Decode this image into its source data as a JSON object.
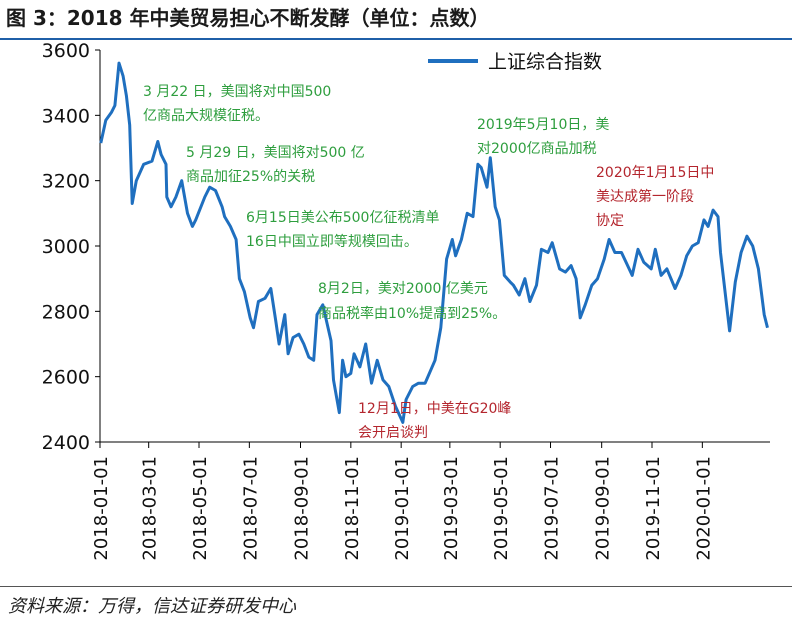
{
  "header": {
    "title": "图 3：2018 年中美贸易担心不断发酵（单位：点数）"
  },
  "footer": {
    "source": "资料来源：万得，信达证券研发中心"
  },
  "chart_data": {
    "type": "line",
    "title": "2018 年中美贸易担心不断发酵",
    "unit": "单位：点数",
    "xlabel": "",
    "ylabel": "",
    "ylim": [
      2400,
      3600
    ],
    "yticks": [
      2400,
      2600,
      2800,
      3000,
      3200,
      3400,
      3600
    ],
    "xlim": [
      "2018-01-01",
      "2020-03-23"
    ],
    "xticks": [
      "2018-01-01",
      "2018-03-01",
      "2018-05-01",
      "2018-07-01",
      "2018-09-01",
      "2018-11-01",
      "2019-01-01",
      "2019-03-01",
      "2019-05-01",
      "2019-07-01",
      "2019-09-01",
      "2019-11-01",
      "2020-01-01"
    ],
    "grid": false,
    "legend": {
      "position": "top-right",
      "entries": [
        "上证综合指数"
      ]
    },
    "series": [
      {
        "name": "上证综合指数",
        "color": "#1f6fbf",
        "points": [
          [
            "2018-01-02",
            3315
          ],
          [
            "2018-01-08",
            3385
          ],
          [
            "2018-01-15",
            3410
          ],
          [
            "2018-01-19",
            3430
          ],
          [
            "2018-01-24",
            3560
          ],
          [
            "2018-01-29",
            3520
          ],
          [
            "2018-02-02",
            3460
          ],
          [
            "2018-02-06",
            3370
          ],
          [
            "2018-02-09",
            3130
          ],
          [
            "2018-02-14",
            3200
          ],
          [
            "2018-02-23",
            3250
          ],
          [
            "2018-03-05",
            3260
          ],
          [
            "2018-03-12",
            3320
          ],
          [
            "2018-03-16",
            3280
          ],
          [
            "2018-03-22",
            3250
          ],
          [
            "2018-03-23",
            3150
          ],
          [
            "2018-03-28",
            3120
          ],
          [
            "2018-04-03",
            3150
          ],
          [
            "2018-04-10",
            3200
          ],
          [
            "2018-04-17",
            3100
          ],
          [
            "2018-04-23",
            3060
          ],
          [
            "2018-04-27",
            3080
          ],
          [
            "2018-05-08",
            3150
          ],
          [
            "2018-05-14",
            3180
          ],
          [
            "2018-05-21",
            3170
          ],
          [
            "2018-05-29",
            3120
          ],
          [
            "2018-06-01",
            3090
          ],
          [
            "2018-06-08",
            3060
          ],
          [
            "2018-06-15",
            3020
          ],
          [
            "2018-06-19",
            2900
          ],
          [
            "2018-06-25",
            2860
          ],
          [
            "2018-07-02",
            2780
          ],
          [
            "2018-07-06",
            2750
          ],
          [
            "2018-07-12",
            2830
          ],
          [
            "2018-07-20",
            2840
          ],
          [
            "2018-07-27",
            2870
          ],
          [
            "2018-08-02",
            2770
          ],
          [
            "2018-08-06",
            2700
          ],
          [
            "2018-08-13",
            2790
          ],
          [
            "2018-08-17",
            2670
          ],
          [
            "2018-08-23",
            2720
          ],
          [
            "2018-08-30",
            2730
          ],
          [
            "2018-09-05",
            2700
          ],
          [
            "2018-09-11",
            2660
          ],
          [
            "2018-09-17",
            2650
          ],
          [
            "2018-09-21",
            2790
          ],
          [
            "2018-09-28",
            2820
          ],
          [
            "2018-10-08",
            2710
          ],
          [
            "2018-10-11",
            2590
          ],
          [
            "2018-10-18",
            2490
          ],
          [
            "2018-10-22",
            2650
          ],
          [
            "2018-10-26",
            2600
          ],
          [
            "2018-11-01",
            2610
          ],
          [
            "2018-11-05",
            2670
          ],
          [
            "2018-11-12",
            2630
          ],
          [
            "2018-11-19",
            2700
          ],
          [
            "2018-11-26",
            2580
          ],
          [
            "2018-12-03",
            2650
          ],
          [
            "2018-12-10",
            2590
          ],
          [
            "2018-12-17",
            2570
          ],
          [
            "2018-12-25",
            2510
          ],
          [
            "2019-01-03",
            2460
          ],
          [
            "2019-01-07",
            2530
          ],
          [
            "2019-01-15",
            2570
          ],
          [
            "2019-01-22",
            2580
          ],
          [
            "2019-01-30",
            2580
          ],
          [
            "2019-02-11",
            2650
          ],
          [
            "2019-02-18",
            2750
          ],
          [
            "2019-02-25",
            2960
          ],
          [
            "2019-03-04",
            3020
          ],
          [
            "2019-03-08",
            2970
          ],
          [
            "2019-03-15",
            3020
          ],
          [
            "2019-03-22",
            3100
          ],
          [
            "2019-03-29",
            3090
          ],
          [
            "2019-04-04",
            3250
          ],
          [
            "2019-04-08",
            3240
          ],
          [
            "2019-04-15",
            3180
          ],
          [
            "2019-04-19",
            3270
          ],
          [
            "2019-04-25",
            3120
          ],
          [
            "2019-04-30",
            3080
          ],
          [
            "2019-05-06",
            2910
          ],
          [
            "2019-05-13",
            2890
          ],
          [
            "2019-05-17",
            2880
          ],
          [
            "2019-05-24",
            2850
          ],
          [
            "2019-05-31",
            2900
          ],
          [
            "2019-06-06",
            2830
          ],
          [
            "2019-06-14",
            2880
          ],
          [
            "2019-06-20",
            2990
          ],
          [
            "2019-06-28",
            2980
          ],
          [
            "2019-07-03",
            3010
          ],
          [
            "2019-07-12",
            2930
          ],
          [
            "2019-07-19",
            2920
          ],
          [
            "2019-07-26",
            2940
          ],
          [
            "2019-08-01",
            2900
          ],
          [
            "2019-08-06",
            2780
          ],
          [
            "2019-08-12",
            2820
          ],
          [
            "2019-08-20",
            2880
          ],
          [
            "2019-08-27",
            2900
          ],
          [
            "2019-09-04",
            2960
          ],
          [
            "2019-09-10",
            3020
          ],
          [
            "2019-09-17",
            2980
          ],
          [
            "2019-09-25",
            2980
          ],
          [
            "2019-10-08",
            2910
          ],
          [
            "2019-10-15",
            2990
          ],
          [
            "2019-10-22",
            2950
          ],
          [
            "2019-10-31",
            2930
          ],
          [
            "2019-11-05",
            2990
          ],
          [
            "2019-11-12",
            2910
          ],
          [
            "2019-11-19",
            2930
          ],
          [
            "2019-11-29",
            2870
          ],
          [
            "2019-12-06",
            2910
          ],
          [
            "2019-12-13",
            2970
          ],
          [
            "2019-12-20",
            3000
          ],
          [
            "2019-12-27",
            3010
          ],
          [
            "2020-01-03",
            3080
          ],
          [
            "2020-01-08",
            3060
          ],
          [
            "2020-01-14",
            3110
          ],
          [
            "2020-01-20",
            3090
          ],
          [
            "2020-01-23",
            2980
          ],
          [
            "2020-02-03",
            2740
          ],
          [
            "2020-02-10",
            2890
          ],
          [
            "2020-02-17",
            2980
          ],
          [
            "2020-02-24",
            3030
          ],
          [
            "2020-03-02",
            3000
          ],
          [
            "2020-03-09",
            2930
          ],
          [
            "2020-03-16",
            2790
          ],
          [
            "2020-03-20",
            2750
          ]
        ]
      }
    ],
    "annotations": [
      {
        "id": "ann1",
        "color": "#2e9e3e",
        "lines": [
          "3 月22 日，美国将对中国500",
          "亿商品大规模征税。"
        ]
      },
      {
        "id": "ann2",
        "color": "#2e9e3e",
        "lines": [
          "5 月29 日，美国将对500 亿",
          "商品加征25%的关税"
        ]
      },
      {
        "id": "ann3",
        "color": "#2e9e3e",
        "lines": [
          "6月15日美公布500亿征税清单",
          "16日中国立即等规模回击。"
        ]
      },
      {
        "id": "ann4",
        "color": "#2e9e3e",
        "lines": [
          "8月2日，美对2000 亿美元",
          "商品税率由10%提高到25%。"
        ]
      },
      {
        "id": "ann5",
        "color": "#b4262e",
        "lines": [
          "12月1日，中美在G20峰",
          "会开启谈判"
        ]
      },
      {
        "id": "ann6",
        "color": "#2e9e3e",
        "lines": [
          "2019年5月10日，美",
          "对2000亿商品加税"
        ]
      },
      {
        "id": "ann7",
        "color": "#b4262e",
        "lines": [
          "2020年1月15日中",
          "美达成第一阶段",
          "协定"
        ]
      }
    ]
  }
}
